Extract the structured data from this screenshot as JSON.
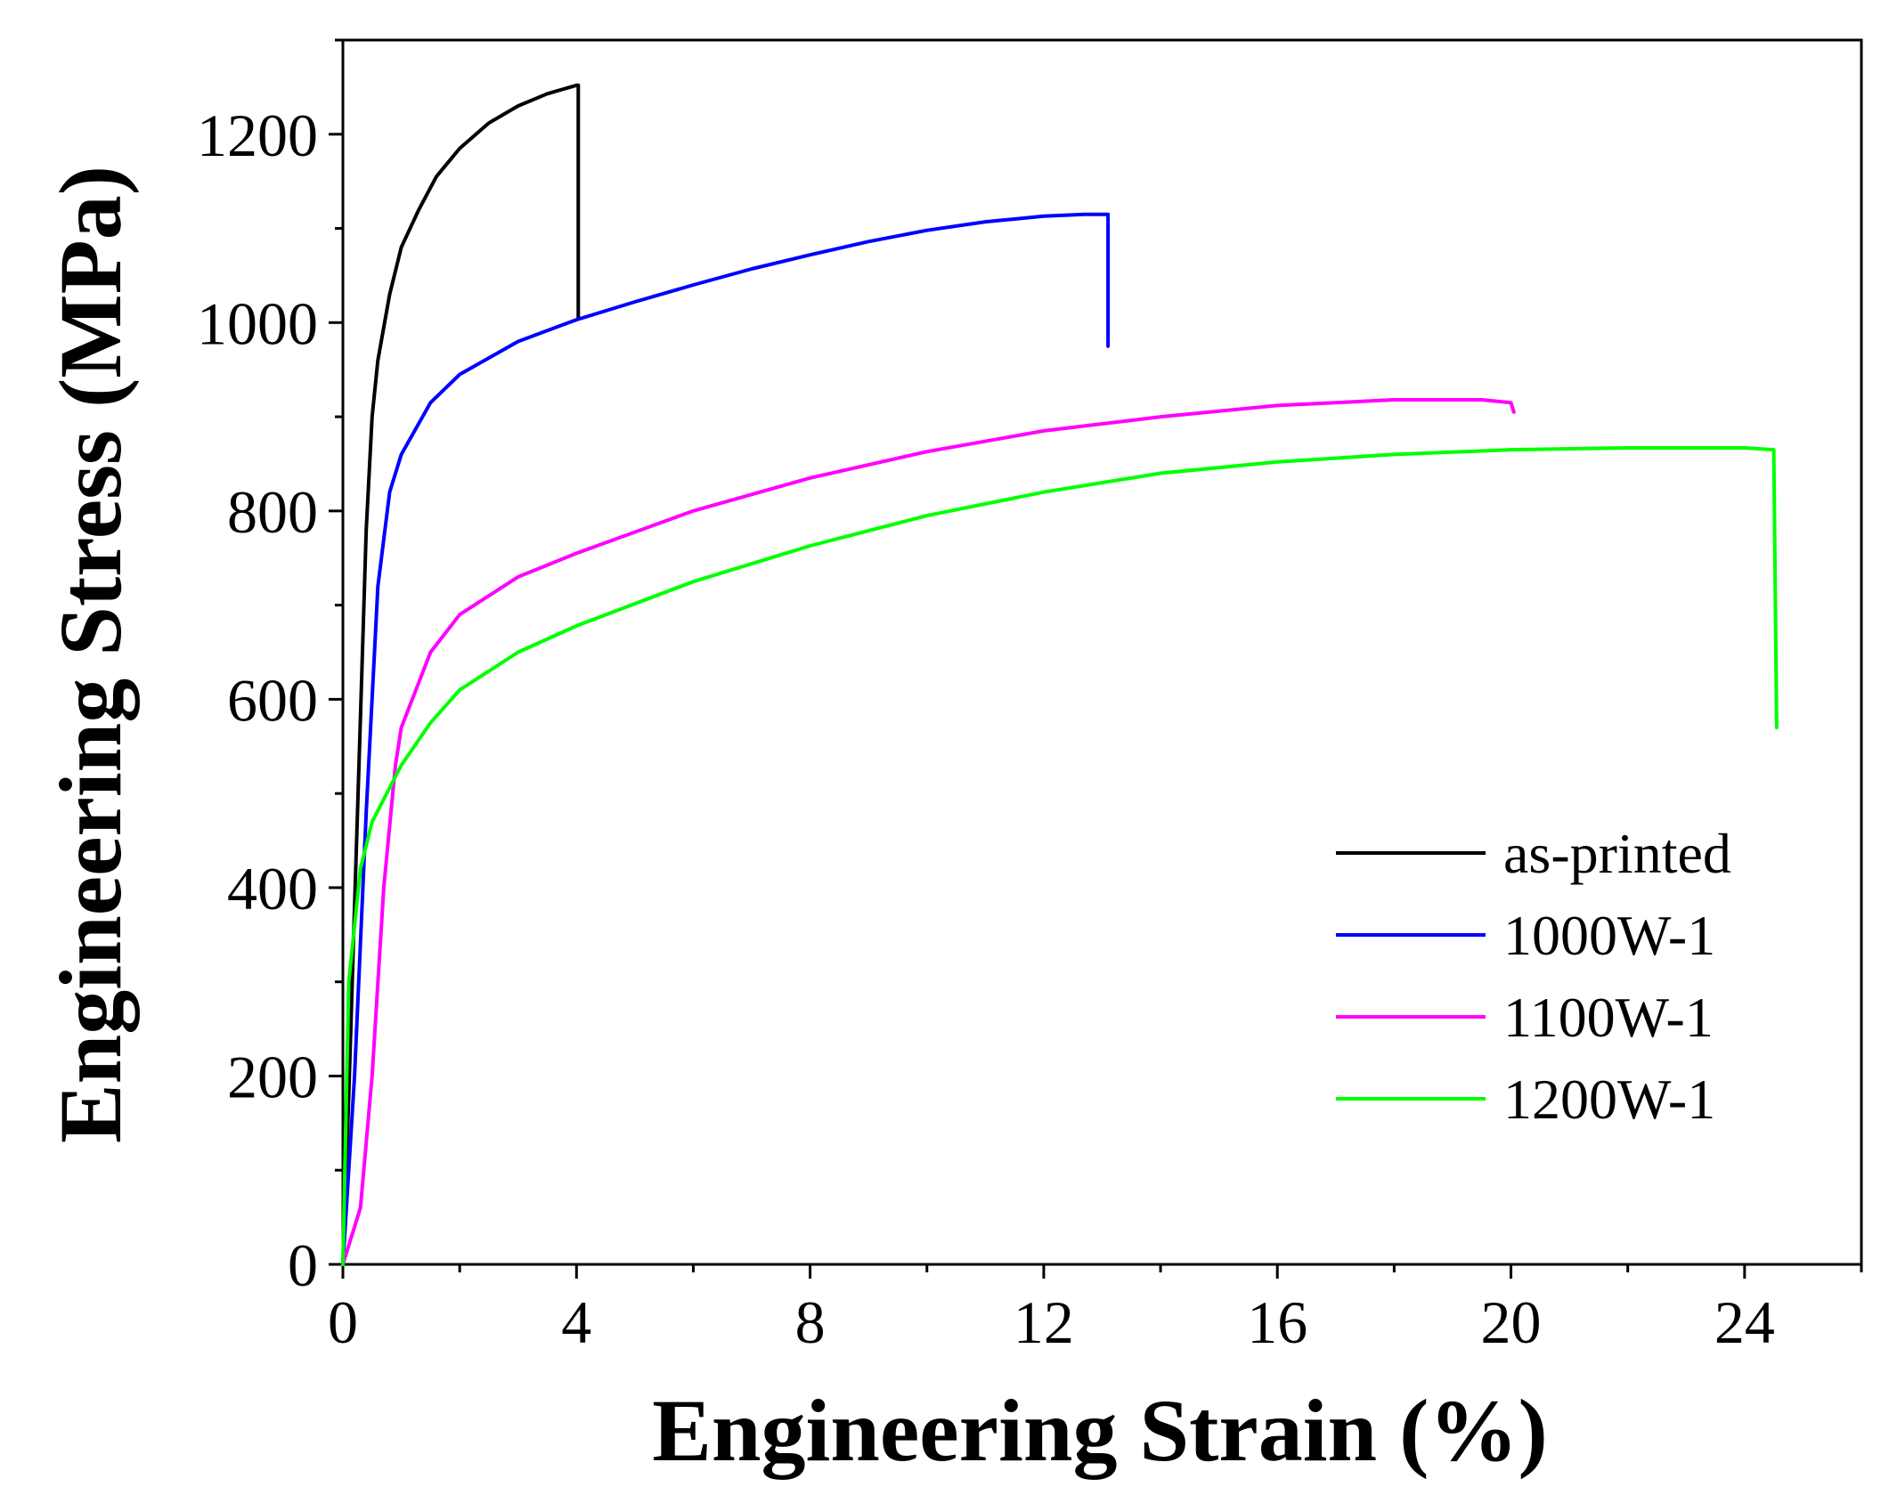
{
  "chart_data": {
    "type": "line",
    "title": "",
    "xlabel": "Engineering Strain (%)",
    "ylabel": "Engineering Stress (MPa)",
    "xlim": [
      0,
      26
    ],
    "ylim": [
      0,
      1300
    ],
    "xticks": [
      0,
      4,
      8,
      12,
      16,
      20,
      24
    ],
    "yticks": [
      0,
      200,
      400,
      600,
      800,
      1000,
      1200
    ],
    "xtick_labels": [
      "0",
      "4",
      "8",
      "12",
      "16",
      "20",
      "24"
    ],
    "ytick_labels": [
      "0",
      "200",
      "400",
      "600",
      "800",
      "1000",
      "1200"
    ],
    "legend_position": "lower-right",
    "grid": false,
    "series": [
      {
        "name": "as-printed",
        "color": "#000000",
        "points": [
          [
            0,
            0
          ],
          [
            0.1,
            180
          ],
          [
            0.2,
            380
          ],
          [
            0.3,
            580
          ],
          [
            0.4,
            780
          ],
          [
            0.5,
            900
          ],
          [
            0.6,
            960
          ],
          [
            0.8,
            1030
          ],
          [
            1.0,
            1080
          ],
          [
            1.3,
            1120
          ],
          [
            1.6,
            1155
          ],
          [
            2.0,
            1185
          ],
          [
            2.5,
            1212
          ],
          [
            3.0,
            1230
          ],
          [
            3.5,
            1243
          ],
          [
            4.0,
            1252
          ],
          [
            4.03,
            1252
          ],
          [
            4.03,
            1005
          ]
        ]
      },
      {
        "name": "1000W-1",
        "color": "#0000ff",
        "points": [
          [
            0,
            0
          ],
          [
            0.2,
            200
          ],
          [
            0.4,
            480
          ],
          [
            0.6,
            720
          ],
          [
            0.8,
            820
          ],
          [
            1.0,
            860
          ],
          [
            1.5,
            915
          ],
          [
            2.0,
            945
          ],
          [
            3.0,
            980
          ],
          [
            4.0,
            1003
          ],
          [
            5.0,
            1022
          ],
          [
            6.0,
            1040
          ],
          [
            7.0,
            1057
          ],
          [
            8.0,
            1072
          ],
          [
            9.0,
            1086
          ],
          [
            10.0,
            1098
          ],
          [
            11.0,
            1107
          ],
          [
            12.0,
            1113
          ],
          [
            12.7,
            1115
          ],
          [
            13.1,
            1115
          ],
          [
            13.1,
            975
          ]
        ]
      },
      {
        "name": "1100W-1",
        "color": "#ff00ff",
        "points": [
          [
            0,
            0
          ],
          [
            0.3,
            60
          ],
          [
            0.5,
            200
          ],
          [
            0.7,
            400
          ],
          [
            0.9,
            530
          ],
          [
            1.0,
            570
          ],
          [
            1.5,
            650
          ],
          [
            2.0,
            690
          ],
          [
            3.0,
            730
          ],
          [
            4.0,
            755
          ],
          [
            6.0,
            800
          ],
          [
            8.0,
            835
          ],
          [
            10.0,
            863
          ],
          [
            12.0,
            885
          ],
          [
            14.0,
            900
          ],
          [
            16.0,
            912
          ],
          [
            18.0,
            918
          ],
          [
            19.5,
            918
          ],
          [
            20.0,
            915
          ],
          [
            20.05,
            905
          ]
        ]
      },
      {
        "name": "1200W-1",
        "color": "#00ff00",
        "points": [
          [
            0,
            0
          ],
          [
            0.1,
            300
          ],
          [
            0.3,
            420
          ],
          [
            0.5,
            470
          ],
          [
            1.0,
            530
          ],
          [
            1.5,
            575
          ],
          [
            2.0,
            610
          ],
          [
            3.0,
            650
          ],
          [
            4.0,
            678
          ],
          [
            6.0,
            725
          ],
          [
            8.0,
            763
          ],
          [
            10.0,
            795
          ],
          [
            12.0,
            820
          ],
          [
            14.0,
            840
          ],
          [
            16.0,
            852
          ],
          [
            18.0,
            860
          ],
          [
            20.0,
            865
          ],
          [
            22.0,
            867
          ],
          [
            24.0,
            867
          ],
          [
            24.5,
            865
          ],
          [
            24.55,
            570
          ]
        ]
      }
    ]
  }
}
